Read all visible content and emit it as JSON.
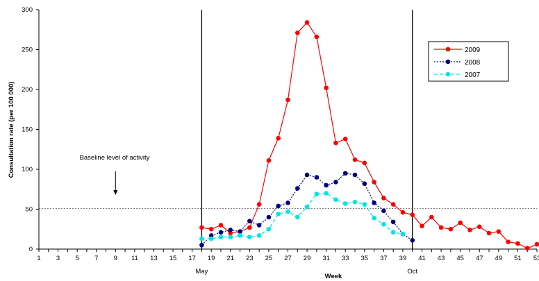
{
  "chart_data": {
    "type": "line",
    "xlabel": "Week",
    "ylabel": "Consultation rate (per 100 000)",
    "xlim": [
      1,
      53
    ],
    "ylim": [
      0,
      300
    ],
    "x_ticks": [
      1,
      3,
      5,
      7,
      9,
      11,
      13,
      15,
      17,
      19,
      21,
      23,
      25,
      27,
      29,
      31,
      33,
      35,
      37,
      39,
      41,
      43,
      45,
      47,
      49,
      51,
      53
    ],
    "y_ticks": [
      0,
      50,
      100,
      150,
      200,
      250,
      300
    ],
    "month_labels": [
      {
        "label": "May",
        "week": 18
      },
      {
        "label": "Oct",
        "week": 40
      }
    ],
    "vertical_markers": [
      18,
      40
    ],
    "baseline": {
      "value": 51,
      "label": "Baseline level of activity",
      "arrow_week": 9
    },
    "legend_position": "top-right",
    "series": [
      {
        "name": "2009",
        "color": "#ff0000",
        "line_style": "solid",
        "x": [
          18,
          19,
          20,
          21,
          22,
          23,
          24,
          25,
          26,
          27,
          28,
          29,
          30,
          31,
          32,
          33,
          34,
          35,
          36,
          37,
          38,
          39,
          40,
          41,
          42,
          43,
          44,
          45,
          46,
          47,
          48,
          49,
          50,
          51,
          52,
          53
        ],
        "values": [
          27,
          25,
          30,
          20,
          22,
          27,
          56,
          111,
          139,
          187,
          271,
          284,
          266,
          202,
          133,
          138,
          112,
          108,
          84,
          64,
          56,
          46,
          43,
          29,
          40,
          27,
          25,
          33,
          24,
          28,
          20,
          22,
          9,
          7,
          1,
          6
        ]
      },
      {
        "name": "2008",
        "color": "#000080",
        "line_style": "dotted",
        "x": [
          18,
          19,
          20,
          21,
          22,
          23,
          24,
          25,
          26,
          27,
          28,
          29,
          30,
          31,
          32,
          33,
          34,
          35,
          36,
          37,
          38,
          39,
          40
        ],
        "values": [
          5,
          17,
          21,
          24,
          22,
          35,
          30,
          40,
          54,
          58,
          76,
          93,
          90,
          80,
          84,
          95,
          93,
          82,
          58,
          48,
          34,
          19,
          11
        ]
      },
      {
        "name": "2007",
        "color": "#00e5e5",
        "line_style": "dashed",
        "x": [
          18,
          19,
          20,
          21,
          22,
          23,
          24,
          25,
          26,
          27,
          28,
          29,
          30,
          31,
          32,
          33,
          34,
          35,
          36,
          37,
          38,
          39
        ],
        "values": [
          13,
          13,
          15,
          15,
          17,
          15,
          17,
          25,
          44,
          47,
          40,
          53,
          69,
          70,
          62,
          57,
          59,
          56,
          39,
          31,
          21,
          19
        ]
      }
    ]
  }
}
